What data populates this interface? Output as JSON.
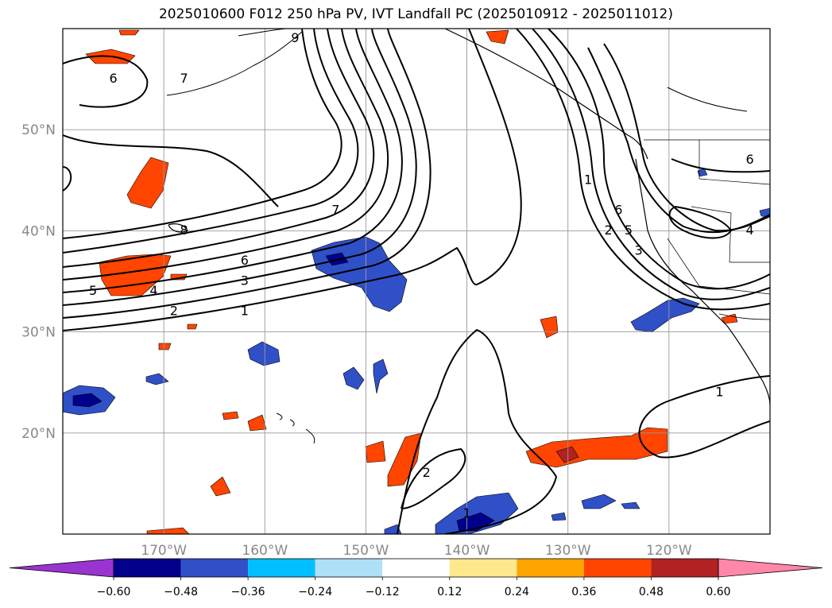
{
  "title": "2025010600 F012 250 hPa PV, IVT Landfall PC (2025010912 - 2025011012)",
  "axes": {
    "lon_labels": [
      "170°W",
      "160°W",
      "150°W",
      "140°W",
      "130°W",
      "120°W"
    ],
    "lon_values": [
      -170,
      -160,
      -150,
      -140,
      -130,
      -120
    ],
    "lat_labels": [
      "20°N",
      "30°N",
      "40°N",
      "50°N"
    ],
    "lat_values": [
      20,
      30,
      40,
      50
    ],
    "lon_range": [
      -180,
      -110
    ],
    "lat_range": [
      10,
      60
    ],
    "label_color": "#888888",
    "grid": true
  },
  "contour_labels": [
    {
      "text": "6",
      "lon": -175,
      "lat": 55
    },
    {
      "text": "7",
      "lon": -168,
      "lat": 55
    },
    {
      "text": "9",
      "lon": -157,
      "lat": 59
    },
    {
      "text": "8",
      "lon": -168,
      "lat": 40
    },
    {
      "text": "7",
      "lon": -153,
      "lat": 42
    },
    {
      "text": "6",
      "lon": -162,
      "lat": 37
    },
    {
      "text": "5",
      "lon": -177,
      "lat": 34
    },
    {
      "text": "4",
      "lon": -171,
      "lat": 34
    },
    {
      "text": "3",
      "lon": -162,
      "lat": 35
    },
    {
      "text": "2",
      "lon": -169,
      "lat": 32
    },
    {
      "text": "1",
      "lon": -162,
      "lat": 32
    },
    {
      "text": "1",
      "lon": -128,
      "lat": 45
    },
    {
      "text": "6",
      "lon": -125,
      "lat": 42
    },
    {
      "text": "5",
      "lon": -124,
      "lat": 40
    },
    {
      "text": "2",
      "lon": -126,
      "lat": 40
    },
    {
      "text": "3",
      "lon": -123,
      "lat": 38
    },
    {
      "text": "6",
      "lon": -112,
      "lat": 47
    },
    {
      "text": "4",
      "lon": -112,
      "lat": 40
    },
    {
      "text": "1",
      "lon": -115,
      "lat": 24
    },
    {
      "text": "2",
      "lon": -144,
      "lat": 16
    },
    {
      "text": "1",
      "lon": -140,
      "lat": 12
    }
  ],
  "colorbar": {
    "ticks": [
      "-0.60",
      "-0.48",
      "-0.36",
      "-0.24",
      "-0.12",
      "0.12",
      "0.24",
      "0.36",
      "0.48",
      "0.60"
    ],
    "colors": [
      "#9a34d0",
      "#00008b",
      "#3050c8",
      "#00bfff",
      "#aee1f7",
      "#ffffff",
      "#fde98c",
      "#ffa500",
      "#ff4500",
      "#b22222",
      "#ff88aa"
    ]
  },
  "chart_data": {
    "type": "heatmap",
    "title": "2025010600 F012 250 hPa PV, IVT Landfall PC (2025010912 - 2025011012)",
    "levels": [
      -0.6,
      -0.48,
      -0.36,
      -0.24,
      -0.12,
      0.12,
      0.24,
      0.36,
      0.48,
      0.6
    ],
    "pv_contour_levels": [
      1,
      2,
      3,
      4,
      5,
      6,
      7,
      8,
      9
    ],
    "xlim": [
      -180,
      -110
    ],
    "ylim": [
      10,
      60
    ],
    "grid": true,
    "legend": "bottom"
  }
}
